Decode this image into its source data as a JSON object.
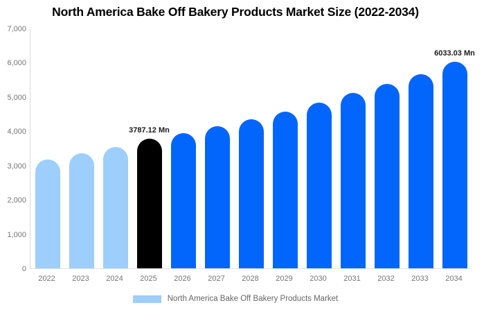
{
  "title": "North America Bake Off Bakery Products Market Size (2022-2034)",
  "chart_data": {
    "type": "bar",
    "title": "North America Bake Off Bakery Products Market Size (2022-2034)",
    "categories": [
      "2022",
      "2023",
      "2024",
      "2025",
      "2026",
      "2027",
      "2028",
      "2029",
      "2030",
      "2031",
      "2032",
      "2033",
      "2034"
    ],
    "values": [
      3170,
      3350,
      3540,
      3787.12,
      3950,
      4150,
      4360,
      4570,
      4830,
      5110,
      5390,
      5670,
      6033.03
    ],
    "unit": "Mn",
    "bar_colors": [
      "#9ECEFB",
      "#9ECEFB",
      "#9ECEFB",
      "#000000",
      "#0266FC",
      "#0266FC",
      "#0266FC",
      "#0266FC",
      "#0266FC",
      "#0266FC",
      "#0266FC",
      "#0266FC",
      "#0266FC"
    ],
    "data_labels": [
      {
        "category": "2025",
        "text": "3787.12 Mn"
      },
      {
        "category": "2034",
        "text": "6033.03 Mn"
      }
    ],
    "xlabel": "",
    "ylabel": "",
    "ylim": [
      0,
      7000
    ],
    "yticks": [
      "7,000",
      "6,000",
      "5,000",
      "4,000",
      "3,000",
      "2,000",
      "1,000",
      "0"
    ],
    "grid": false,
    "legend": {
      "position": "bottom",
      "entries": [
        {
          "label": "North America Bake Off Bakery Products Market",
          "color": "#9ECEFB"
        }
      ]
    }
  },
  "colors": {
    "historical_bar": "#9ECEFB",
    "base_year_bar": "#000000",
    "forecast_bar": "#0266FC",
    "axis_line_vertical": "#D9D9D9",
    "axis_line_horizontal": "#E3E3E3",
    "axis_text": "#757575",
    "legend_text": "#666666",
    "title_text": "#000000"
  }
}
